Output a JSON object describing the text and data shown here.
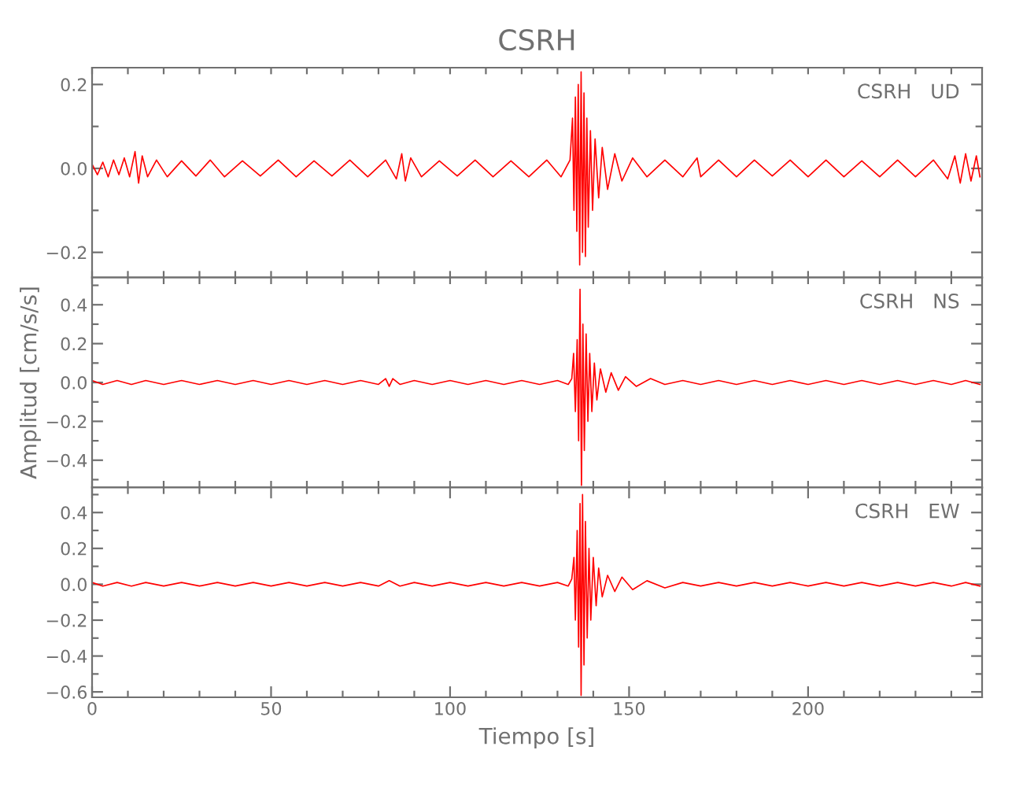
{
  "chart_data": [
    {
      "type": "line",
      "title": "CSRH",
      "annotations": [
        "CSRH   UD"
      ],
      "tick_labels": "y",
      "grid": false,
      "legend": false,
      "xlim": [
        0,
        248.6
      ],
      "ylim": [
        -0.26,
        0.24
      ],
      "xticks": [
        {
          "value": 0,
          "label": null
        },
        {
          "value": 10,
          "label": null
        },
        {
          "value": 20,
          "label": null
        },
        {
          "value": 30,
          "label": null
        },
        {
          "value": 40,
          "label": null
        },
        {
          "value": 50,
          "label": null
        },
        {
          "value": 60,
          "label": null
        },
        {
          "value": 70,
          "label": null
        },
        {
          "value": 80,
          "label": null
        },
        {
          "value": 90,
          "label": null
        },
        {
          "value": 100,
          "label": null
        },
        {
          "value": 110,
          "label": null
        },
        {
          "value": 120,
          "label": null
        },
        {
          "value": 130,
          "label": null
        },
        {
          "value": 140,
          "label": null
        },
        {
          "value": 150,
          "label": null
        },
        {
          "value": 160,
          "label": null
        },
        {
          "value": 170,
          "label": null
        },
        {
          "value": 180,
          "label": null
        },
        {
          "value": 190,
          "label": null
        },
        {
          "value": 200,
          "label": null
        },
        {
          "value": 210,
          "label": null
        },
        {
          "value": 220,
          "label": null
        },
        {
          "value": 230,
          "label": null
        },
        {
          "value": 240,
          "label": null
        }
      ],
      "yticks": [
        {
          "value": -0.2,
          "label": "−0.2"
        },
        {
          "value": -0.1,
          "label": null
        },
        {
          "value": 0,
          "label": "0.0"
        },
        {
          "value": 0.1,
          "label": null
        },
        {
          "value": 0.2,
          "label": "0.2"
        }
      ],
      "series": [
        {
          "color": "#ff0000",
          "x": [
            0,
            1.5,
            3,
            4.5,
            6,
            7.5,
            9,
            10.5,
            12,
            13,
            14,
            15.5,
            18,
            21,
            25,
            29,
            33,
            37,
            42,
            47,
            52,
            57,
            62,
            67,
            72,
            77,
            82,
            85,
            86.5,
            87.5,
            89,
            92,
            97,
            102,
            107,
            112,
            117,
            122,
            127,
            131,
            133.5,
            134.2,
            134.6,
            135,
            135.4,
            135.8,
            136.2,
            136.6,
            137,
            137.4,
            137.8,
            138.2,
            138.6,
            139.2,
            139.8,
            140.5,
            141.5,
            142.5,
            144,
            146,
            148,
            151,
            155,
            160,
            165,
            169,
            170,
            175,
            180,
            185,
            190,
            195,
            200,
            205,
            210,
            215,
            220,
            225,
            230,
            235,
            239,
            241,
            242.5,
            244,
            245.5,
            247,
            248
          ],
          "values": [
            0.01,
            -0.015,
            0.015,
            -0.02,
            0.02,
            -0.015,
            0.025,
            -0.02,
            0.04,
            -0.035,
            0.03,
            -0.02,
            0.02,
            -0.02,
            0.018,
            -0.018,
            0.02,
            -0.02,
            0.018,
            -0.018,
            0.02,
            -0.02,
            0.018,
            -0.018,
            0.02,
            -0.02,
            0.02,
            -0.025,
            0.035,
            -0.03,
            0.025,
            -0.02,
            0.018,
            -0.018,
            0.02,
            -0.02,
            0.018,
            -0.02,
            0.02,
            -0.02,
            0.02,
            0.12,
            -0.1,
            0.17,
            -0.15,
            0.2,
            -0.23,
            0.23,
            -0.2,
            0.18,
            -0.21,
            0.12,
            -0.14,
            0.09,
            -0.1,
            0.07,
            -0.07,
            0.05,
            -0.05,
            0.035,
            -0.03,
            0.025,
            -0.02,
            0.02,
            -0.02,
            0.025,
            -0.02,
            0.02,
            -0.02,
            0.02,
            -0.018,
            0.02,
            -0.02,
            0.02,
            -0.02,
            0.018,
            -0.02,
            0.02,
            -0.02,
            0.02,
            -0.025,
            0.03,
            -0.035,
            0.035,
            -0.03,
            0.03,
            -0.02
          ]
        }
      ]
    },
    {
      "type": "line",
      "ylabel": "Amplitud [cm/s/s]",
      "annotations": [
        "CSRH   NS"
      ],
      "tick_labels": "y",
      "grid": false,
      "legend": false,
      "xlim": [
        0,
        248.6
      ],
      "ylim": [
        -0.54,
        0.54
      ],
      "xticks": [
        {
          "value": 0,
          "label": null
        },
        {
          "value": 10,
          "label": null
        },
        {
          "value": 20,
          "label": null
        },
        {
          "value": 30,
          "label": null
        },
        {
          "value": 40,
          "label": null
        },
        {
          "value": 50,
          "label": null
        },
        {
          "value": 60,
          "label": null
        },
        {
          "value": 70,
          "label": null
        },
        {
          "value": 80,
          "label": null
        },
        {
          "value": 90,
          "label": null
        },
        {
          "value": 100,
          "label": null
        },
        {
          "value": 110,
          "label": null
        },
        {
          "value": 120,
          "label": null
        },
        {
          "value": 130,
          "label": null
        },
        {
          "value": 140,
          "label": null
        },
        {
          "value": 150,
          "label": null
        },
        {
          "value": 160,
          "label": null
        },
        {
          "value": 170,
          "label": null
        },
        {
          "value": 180,
          "label": null
        },
        {
          "value": 190,
          "label": null
        },
        {
          "value": 200,
          "label": null
        },
        {
          "value": 210,
          "label": null
        },
        {
          "value": 220,
          "label": null
        },
        {
          "value": 230,
          "label": null
        },
        {
          "value": 240,
          "label": null
        }
      ],
      "yticks": [
        {
          "value": -0.5,
          "label": null
        },
        {
          "value": -0.4,
          "label": "−0.4"
        },
        {
          "value": -0.3,
          "label": null
        },
        {
          "value": -0.2,
          "label": "−0.2"
        },
        {
          "value": -0.1,
          "label": null
        },
        {
          "value": 0,
          "label": "0.0"
        },
        {
          "value": 0.1,
          "label": null
        },
        {
          "value": 0.2,
          "label": "0.2"
        },
        {
          "value": 0.3,
          "label": null
        },
        {
          "value": 0.4,
          "label": "0.4"
        },
        {
          "value": 0.5,
          "label": null
        }
      ],
      "series": [
        {
          "color": "#ff0000",
          "x": [
            0,
            3,
            7,
            11,
            15,
            20,
            25,
            30,
            35,
            40,
            45,
            50,
            55,
            60,
            65,
            70,
            75,
            80,
            82,
            83,
            84,
            86,
            90,
            95,
            100,
            105,
            110,
            115,
            120,
            125,
            130,
            133,
            134,
            134.5,
            135,
            135.5,
            135.9,
            136.3,
            136.7,
            137.1,
            137.5,
            138,
            138.5,
            139,
            139.6,
            140.3,
            141,
            142,
            143.5,
            145,
            147,
            149,
            152,
            156,
            160,
            165,
            170,
            175,
            180,
            185,
            190,
            195,
            200,
            205,
            210,
            215,
            220,
            225,
            230,
            235,
            240,
            244,
            248
          ],
          "values": [
            0.01,
            -0.01,
            0.01,
            -0.01,
            0.01,
            -0.01,
            0.01,
            -0.01,
            0.01,
            -0.01,
            0.01,
            -0.01,
            0.01,
            -0.01,
            0.01,
            -0.01,
            0.01,
            -0.01,
            0.02,
            -0.02,
            0.02,
            -0.01,
            0.01,
            -0.01,
            0.01,
            -0.01,
            0.01,
            -0.01,
            0.01,
            -0.01,
            0.01,
            -0.01,
            0.02,
            0.15,
            -0.15,
            0.22,
            -0.3,
            0.48,
            -0.53,
            0.3,
            -0.35,
            0.25,
            -0.2,
            0.15,
            -0.15,
            0.1,
            -0.09,
            0.07,
            -0.05,
            0.05,
            -0.04,
            0.03,
            -0.02,
            0.02,
            -0.01,
            0.01,
            -0.01,
            0.01,
            -0.01,
            0.01,
            -0.01,
            0.01,
            -0.01,
            0.01,
            -0.01,
            0.01,
            -0.01,
            0.01,
            -0.01,
            0.01,
            -0.01,
            0.01,
            -0.01
          ]
        }
      ]
    },
    {
      "type": "line",
      "xlabel": "Tiempo [s]",
      "annotations": [
        "CSRH   EW"
      ],
      "grid": false,
      "legend": false,
      "xlim": [
        0,
        248.6
      ],
      "ylim": [
        -0.63,
        0.54
      ],
      "xticks": [
        {
          "value": 0,
          "label": "0"
        },
        {
          "value": 10,
          "label": null
        },
        {
          "value": 20,
          "label": null
        },
        {
          "value": 30,
          "label": null
        },
        {
          "value": 40,
          "label": null
        },
        {
          "value": 50,
          "label": "50"
        },
        {
          "value": 60,
          "label": null
        },
        {
          "value": 70,
          "label": null
        },
        {
          "value": 80,
          "label": null
        },
        {
          "value": 90,
          "label": null
        },
        {
          "value": 100,
          "label": "100"
        },
        {
          "value": 110,
          "label": null
        },
        {
          "value": 120,
          "label": null
        },
        {
          "value": 130,
          "label": null
        },
        {
          "value": 140,
          "label": null
        },
        {
          "value": 150,
          "label": "150"
        },
        {
          "value": 160,
          "label": null
        },
        {
          "value": 170,
          "label": null
        },
        {
          "value": 180,
          "label": null
        },
        {
          "value": 190,
          "label": null
        },
        {
          "value": 200,
          "label": "200"
        },
        {
          "value": 210,
          "label": null
        },
        {
          "value": 220,
          "label": null
        },
        {
          "value": 230,
          "label": null
        },
        {
          "value": 240,
          "label": null
        }
      ],
      "yticks": [
        {
          "value": -0.6,
          "label": "−0.6"
        },
        {
          "value": -0.5,
          "label": null
        },
        {
          "value": -0.4,
          "label": "−0.4"
        },
        {
          "value": -0.3,
          "label": null
        },
        {
          "value": -0.2,
          "label": "−0.2"
        },
        {
          "value": -0.1,
          "label": null
        },
        {
          "value": 0,
          "label": "0.0"
        },
        {
          "value": 0.1,
          "label": null
        },
        {
          "value": 0.2,
          "label": "0.2"
        },
        {
          "value": 0.3,
          "label": null
        },
        {
          "value": 0.4,
          "label": "0.4"
        },
        {
          "value": 0.5,
          "label": null
        }
      ],
      "series": [
        {
          "color": "#ff0000",
          "x": [
            0,
            3,
            7,
            11,
            15,
            20,
            25,
            30,
            35,
            40,
            45,
            50,
            55,
            60,
            65,
            70,
            75,
            80,
            83,
            86,
            90,
            95,
            100,
            105,
            110,
            115,
            120,
            125,
            130,
            133,
            134,
            134.6,
            135,
            135.5,
            135.9,
            136.3,
            136.6,
            137,
            137.4,
            137.8,
            138.3,
            138.8,
            139.3,
            140,
            140.8,
            141.5,
            142.5,
            144,
            146,
            148,
            151,
            155,
            160,
            165,
            170,
            175,
            180,
            185,
            190,
            195,
            200,
            205,
            210,
            215,
            220,
            225,
            230,
            235,
            240,
            244,
            248
          ],
          "values": [
            0.01,
            -0.01,
            0.01,
            -0.01,
            0.01,
            -0.01,
            0.01,
            -0.01,
            0.01,
            -0.01,
            0.01,
            -0.01,
            0.01,
            -0.01,
            0.01,
            -0.01,
            0.01,
            -0.01,
            0.02,
            -0.01,
            0.01,
            -0.01,
            0.01,
            -0.01,
            0.01,
            -0.01,
            0.01,
            -0.01,
            0.01,
            -0.01,
            0.03,
            0.15,
            -0.2,
            0.3,
            -0.35,
            0.45,
            -0.62,
            0.5,
            -0.45,
            0.35,
            -0.3,
            0.2,
            -0.2,
            0.15,
            -0.12,
            0.09,
            -0.07,
            0.05,
            -0.04,
            0.04,
            -0.03,
            0.02,
            -0.02,
            0.01,
            -0.01,
            0.01,
            -0.01,
            0.01,
            -0.01,
            0.01,
            -0.01,
            0.01,
            -0.01,
            0.01,
            -0.01,
            0.01,
            -0.01,
            0.01,
            -0.01,
            0.01,
            -0.01
          ]
        }
      ]
    }
  ]
}
